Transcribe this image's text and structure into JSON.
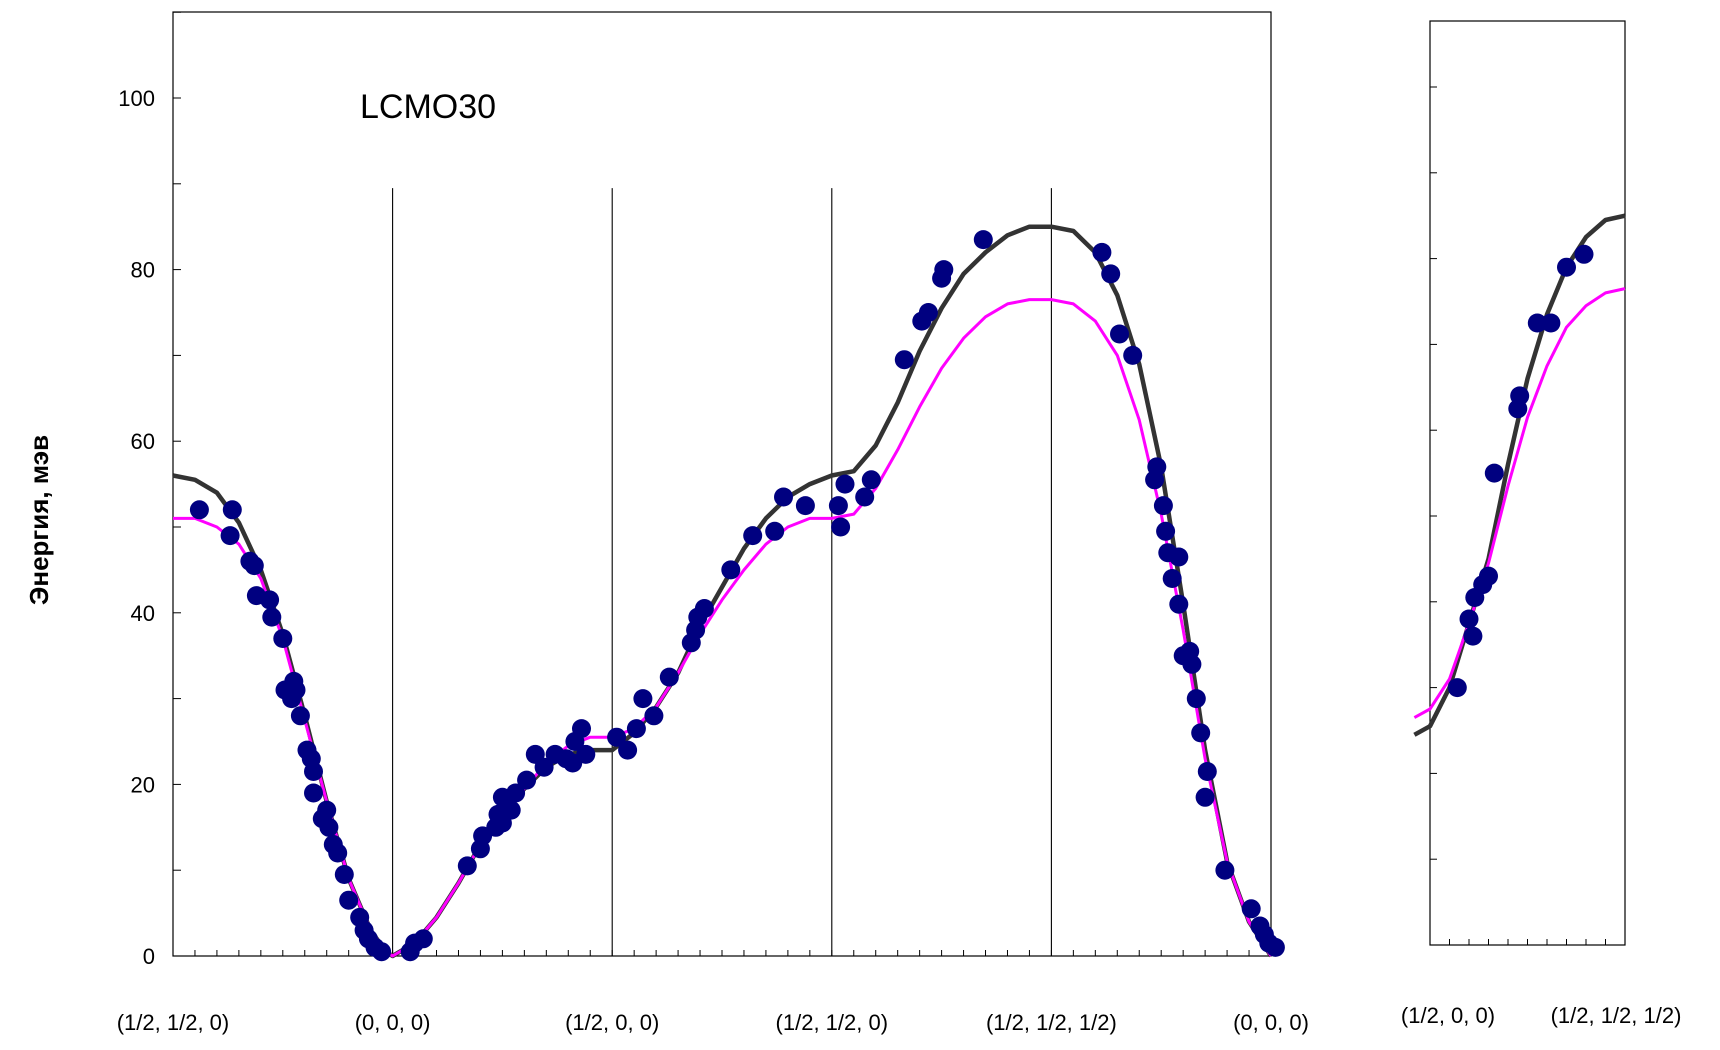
{
  "chart_data": [
    {
      "type": "scatter",
      "title": "",
      "annotation": "LCMO30",
      "ylabel": "Энергия, мэв",
      "ylim": [
        0,
        110
      ],
      "xlim": [
        0,
        5
      ],
      "yticks": [
        "0",
        "20",
        "40",
        "60",
        "80",
        "100"
      ],
      "ytick_values": [
        0,
        20,
        40,
        60,
        80,
        100
      ],
      "xtick_labels": [
        "(1/2, 1/2, 0)",
        "(0, 0, 0)",
        "(1/2, 0, 0)",
        "(1/2, 1/2, 0)",
        "(1/2, 1/2, 1/2)",
        "(0, 0, 0)"
      ],
      "xtick_positions": [
        0,
        1,
        2,
        3,
        4,
        5
      ],
      "segment_dividers": [
        1,
        2,
        3,
        4
      ],
      "grid": false,
      "series": [
        {
          "kind": "points",
          "color": "#000080",
          "points": [
            [
              0.12,
              52
            ],
            [
              0.26,
              49
            ],
            [
              0.27,
              52
            ],
            [
              0.35,
              46
            ],
            [
              0.37,
              45.5
            ],
            [
              0.38,
              42
            ],
            [
              0.44,
              41.5
            ],
            [
              0.45,
              39.5
            ],
            [
              0.5,
              37
            ],
            [
              0.51,
              31
            ],
            [
              0.54,
              30
            ],
            [
              0.55,
              32
            ],
            [
              0.56,
              31
            ],
            [
              0.58,
              28
            ],
            [
              0.61,
              24
            ],
            [
              0.63,
              23
            ],
            [
              0.64,
              21.5
            ],
            [
              0.64,
              19
            ],
            [
              0.68,
              16
            ],
            [
              0.7,
              17
            ],
            [
              0.71,
              15
            ],
            [
              0.73,
              13
            ],
            [
              0.75,
              12
            ],
            [
              0.78,
              9.5
            ],
            [
              0.8,
              6.5
            ],
            [
              0.85,
              4.5
            ],
            [
              0.87,
              3
            ],
            [
              0.89,
              2
            ],
            [
              0.92,
              1
            ],
            [
              0.95,
              0.5
            ],
            [
              1.08,
              0.5
            ],
            [
              1.1,
              1.5
            ],
            [
              1.14,
              2
            ],
            [
              1.34,
              10.5
            ],
            [
              1.4,
              12.5
            ],
            [
              1.41,
              14
            ],
            [
              1.47,
              15
            ],
            [
              1.48,
              16.5
            ],
            [
              1.5,
              15.5
            ],
            [
              1.5,
              18.5
            ],
            [
              1.54,
              17
            ],
            [
              1.56,
              19
            ],
            [
              1.61,
              20.5
            ],
            [
              1.65,
              23.5
            ],
            [
              1.69,
              22
            ],
            [
              1.74,
              23.5
            ],
            [
              1.79,
              23
            ],
            [
              1.82,
              22.5
            ],
            [
              1.83,
              25
            ],
            [
              1.86,
              26.5
            ],
            [
              1.88,
              23.5
            ],
            [
              2.02,
              25.5
            ],
            [
              2.07,
              24
            ],
            [
              2.11,
              26.5
            ],
            [
              2.14,
              30
            ],
            [
              2.19,
              28
            ],
            [
              2.26,
              32.5
            ],
            [
              2.36,
              36.5
            ],
            [
              2.38,
              38
            ],
            [
              2.39,
              39.5
            ],
            [
              2.42,
              40.5
            ],
            [
              2.54,
              45
            ],
            [
              2.64,
              49
            ],
            [
              2.74,
              49.5
            ],
            [
              2.78,
              53.5
            ],
            [
              2.88,
              52.5
            ],
            [
              3.03,
              52.5
            ],
            [
              3.04,
              50
            ],
            [
              3.06,
              55
            ],
            [
              3.15,
              53.5
            ],
            [
              3.18,
              55.5
            ],
            [
              3.33,
              69.5
            ],
            [
              3.41,
              74
            ],
            [
              3.44,
              75
            ],
            [
              3.5,
              79
            ],
            [
              3.51,
              80
            ],
            [
              3.69,
              83.5
            ],
            [
              4.23,
              82
            ],
            [
              4.27,
              79.5
            ],
            [
              4.31,
              72.5
            ],
            [
              4.37,
              70
            ],
            [
              4.47,
              55.5
            ],
            [
              4.48,
              57
            ],
            [
              4.51,
              52.5
            ],
            [
              4.52,
              49.5
            ],
            [
              4.53,
              47
            ],
            [
              4.55,
              44
            ],
            [
              4.58,
              46.5
            ],
            [
              4.58,
              41
            ],
            [
              4.6,
              35
            ],
            [
              4.63,
              35.5
            ],
            [
              4.64,
              34
            ],
            [
              4.66,
              30
            ],
            [
              4.68,
              26
            ],
            [
              4.7,
              18.5
            ],
            [
              4.71,
              21.5
            ],
            [
              4.79,
              10
            ],
            [
              4.91,
              5.5
            ],
            [
              4.95,
              3.5
            ],
            [
              4.97,
              2.5
            ],
            [
              4.99,
              1.5
            ],
            [
              5.02,
              1
            ]
          ]
        },
        {
          "kind": "line",
          "color": "#333333",
          "points": [
            [
              0,
              56
            ],
            [
              0.1,
              55.5
            ],
            [
              0.2,
              54
            ],
            [
              0.3,
              50.5
            ],
            [
              0.4,
              45
            ],
            [
              0.5,
              37.5
            ],
            [
              0.6,
              28
            ],
            [
              0.7,
              18
            ],
            [
              0.8,
              9
            ],
            [
              0.9,
              3
            ],
            [
              0.97,
              0.5
            ],
            [
              1,
              0
            ],
            [
              1.1,
              1.5
            ],
            [
              1.2,
              4.5
            ],
            [
              1.3,
              8.5
            ],
            [
              1.4,
              13
            ],
            [
              1.5,
              16.5
            ],
            [
              1.6,
              19.5
            ],
            [
              1.7,
              22
            ],
            [
              1.8,
              23.5
            ],
            [
              1.9,
              24
            ],
            [
              2,
              24
            ],
            [
              2.1,
              26
            ],
            [
              2.2,
              29
            ],
            [
              2.3,
              33
            ],
            [
              2.4,
              38.5
            ],
            [
              2.5,
              43
            ],
            [
              2.6,
              47.5
            ],
            [
              2.7,
              51
            ],
            [
              2.8,
              53.5
            ],
            [
              2.9,
              55
            ],
            [
              3,
              56
            ],
            [
              3.1,
              56.5
            ],
            [
              3.2,
              59.5
            ],
            [
              3.3,
              64.5
            ],
            [
              3.4,
              70.5
            ],
            [
              3.5,
              75.5
            ],
            [
              3.6,
              79.5
            ],
            [
              3.7,
              82
            ],
            [
              3.8,
              84
            ],
            [
              3.9,
              85
            ],
            [
              4,
              85
            ],
            [
              4.1,
              84.5
            ],
            [
              4.2,
              82
            ],
            [
              4.3,
              77
            ],
            [
              4.4,
              69
            ],
            [
              4.5,
              57
            ],
            [
              4.6,
              41
            ],
            [
              4.7,
              24
            ],
            [
              4.8,
              11
            ],
            [
              4.9,
              4
            ],
            [
              5,
              0
            ]
          ]
        },
        {
          "kind": "line",
          "color": "#ff00ff",
          "points": [
            [
              0,
              51
            ],
            [
              0.1,
              51
            ],
            [
              0.2,
              50
            ],
            [
              0.3,
              48
            ],
            [
              0.4,
              44
            ],
            [
              0.5,
              37
            ],
            [
              0.6,
              27.5
            ],
            [
              0.7,
              18
            ],
            [
              0.8,
              9
            ],
            [
              0.9,
              3
            ],
            [
              0.97,
              0.5
            ],
            [
              1,
              0
            ],
            [
              1.1,
              1.5
            ],
            [
              1.2,
              4.5
            ],
            [
              1.3,
              8.5
            ],
            [
              1.4,
              13
            ],
            [
              1.5,
              16.5
            ],
            [
              1.6,
              19.5
            ],
            [
              1.7,
              22.5
            ],
            [
              1.8,
              24.5
            ],
            [
              1.9,
              25.5
            ],
            [
              2,
              25.5
            ],
            [
              2.1,
              26.5
            ],
            [
              2.2,
              29
            ],
            [
              2.3,
              33
            ],
            [
              2.4,
              37.5
            ],
            [
              2.5,
              41.5
            ],
            [
              2.6,
              45
            ],
            [
              2.7,
              48
            ],
            [
              2.8,
              50
            ],
            [
              2.9,
              51
            ],
            [
              3,
              51
            ],
            [
              3.1,
              51.5
            ],
            [
              3.2,
              54.5
            ],
            [
              3.3,
              59
            ],
            [
              3.4,
              64
            ],
            [
              3.5,
              68.5
            ],
            [
              3.6,
              72
            ],
            [
              3.7,
              74.5
            ],
            [
              3.8,
              76
            ],
            [
              3.9,
              76.5
            ],
            [
              4,
              76.5
            ],
            [
              4.1,
              76
            ],
            [
              4.2,
              74
            ],
            [
              4.3,
              70
            ],
            [
              4.4,
              62.5
            ],
            [
              4.5,
              51.5
            ],
            [
              4.6,
              38
            ],
            [
              4.7,
              23
            ],
            [
              4.8,
              11
            ],
            [
              4.9,
              4
            ],
            [
              5,
              0
            ]
          ]
        }
      ]
    },
    {
      "type": "scatter",
      "ylim": [
        0,
        110
      ],
      "xlim": [
        0,
        1
      ],
      "xtick_labels": [
        "(1/2, 0, 0)",
        "(1/2, 1/2, 1/2)"
      ],
      "xtick_positions": [
        0,
        1
      ],
      "grid": false,
      "series": [
        {
          "kind": "points",
          "color": "#000080",
          "points": [
            [
              0.14,
              30
            ],
            [
              0.2,
              38
            ],
            [
              0.22,
              36
            ],
            [
              0.23,
              40.5
            ],
            [
              0.27,
              42
            ],
            [
              0.3,
              43
            ],
            [
              0.33,
              55
            ],
            [
              0.45,
              62.5
            ],
            [
              0.46,
              64
            ],
            [
              0.55,
              72.5
            ],
            [
              0.62,
              72.5
            ],
            [
              0.7,
              79
            ],
            [
              0.79,
              80.5
            ]
          ]
        },
        {
          "kind": "line",
          "color": "#333333",
          "points": [
            [
              -0.08,
              24.5
            ],
            [
              0,
              25.5
            ],
            [
              0.1,
              30
            ],
            [
              0.2,
              37.5
            ],
            [
              0.3,
              45
            ],
            [
              0.4,
              56
            ],
            [
              0.5,
              66
            ],
            [
              0.6,
              73.5
            ],
            [
              0.7,
              79
            ],
            [
              0.8,
              82.5
            ],
            [
              0.9,
              84.5
            ],
            [
              1,
              85
            ]
          ]
        },
        {
          "kind": "line",
          "color": "#ff00ff",
          "points": [
            [
              -0.08,
              26.5
            ],
            [
              0,
              27.5
            ],
            [
              0.1,
              31
            ],
            [
              0.2,
              37.5
            ],
            [
              0.3,
              44.5
            ],
            [
              0.4,
              53.5
            ],
            [
              0.5,
              61.5
            ],
            [
              0.6,
              67.5
            ],
            [
              0.7,
              72
            ],
            [
              0.8,
              74.5
            ],
            [
              0.9,
              76
            ],
            [
              1,
              76.5
            ]
          ]
        }
      ]
    }
  ]
}
